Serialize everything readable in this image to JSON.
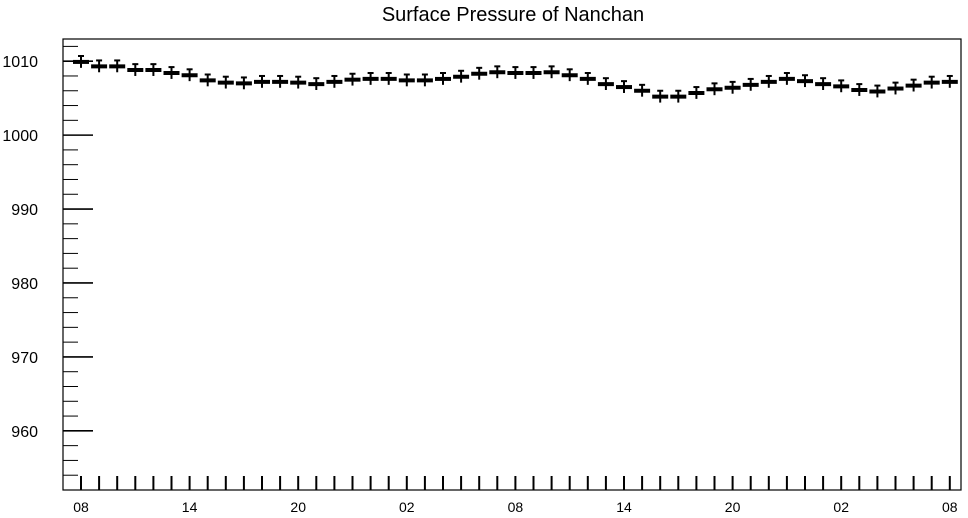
{
  "chart_data": {
    "type": "line",
    "title": "Surface Pressure of Nanchan",
    "xlabel": "",
    "ylabel": "",
    "ylim": [
      952,
      1013
    ],
    "yticks": [
      960,
      970,
      980,
      990,
      1000,
      1010
    ],
    "xtick_labels": [
      "08",
      "14",
      "20",
      "02",
      "08",
      "14",
      "20",
      "02",
      "08"
    ],
    "error_bar": 0.8,
    "grid": false,
    "series": [
      {
        "x": [
          0,
          1,
          2,
          3,
          4,
          5,
          6,
          7,
          8,
          9,
          10,
          11,
          12,
          13,
          14,
          15,
          16,
          17,
          18,
          19,
          20,
          21,
          22,
          23,
          24,
          25,
          26,
          27,
          28,
          29,
          30,
          31,
          32,
          33,
          34,
          35,
          36,
          37,
          38,
          39,
          40,
          41,
          42,
          43,
          44,
          45,
          46,
          47,
          48
        ],
        "values": [
          1009.9,
          1009.3,
          1009.3,
          1008.8,
          1008.8,
          1008.4,
          1008.1,
          1007.4,
          1007.1,
          1007.0,
          1007.2,
          1007.2,
          1007.1,
          1006.9,
          1007.2,
          1007.5,
          1007.6,
          1007.6,
          1007.4,
          1007.4,
          1007.6,
          1007.9,
          1008.3,
          1008.5,
          1008.4,
          1008.4,
          1008.5,
          1008.1,
          1007.6,
          1006.9,
          1006.5,
          1006.0,
          1005.2,
          1005.2,
          1005.7,
          1006.2,
          1006.4,
          1006.8,
          1007.2,
          1007.6,
          1007.3,
          1006.9,
          1006.6,
          1006.1,
          1005.9,
          1006.3,
          1006.7,
          1007.1,
          1007.2
        ]
      }
    ]
  }
}
